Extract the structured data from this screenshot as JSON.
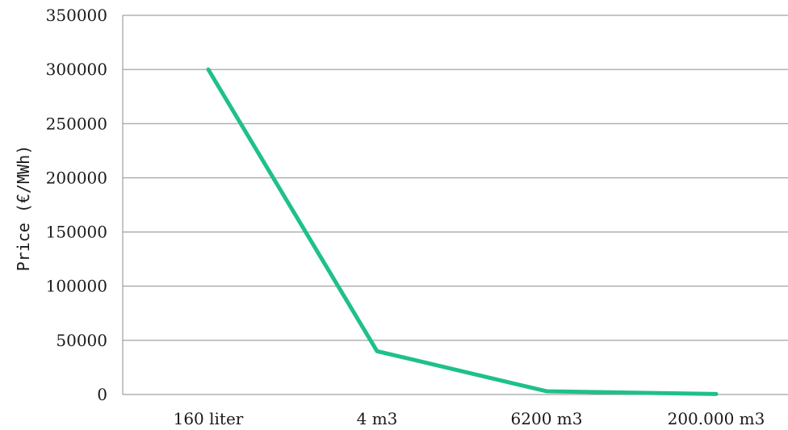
{
  "chart_data": {
    "type": "line",
    "title": "",
    "xlabel": "",
    "ylabel": "Price (€/MWh)",
    "categories": [
      "160 liter",
      "4 m3",
      "6200 m3",
      "200.000 m3"
    ],
    "series": [
      {
        "values": [
          300000,
          40000,
          3000,
          500
        ]
      }
    ],
    "ylim": [
      0,
      350000
    ],
    "yticks": [
      0,
      50000,
      100000,
      150000,
      200000,
      250000,
      300000,
      350000
    ],
    "grid": true,
    "legend": "none",
    "line_color": "#1fc08a",
    "grid_color": "#8c8c8c",
    "axis_color": "#8c8c8c"
  }
}
